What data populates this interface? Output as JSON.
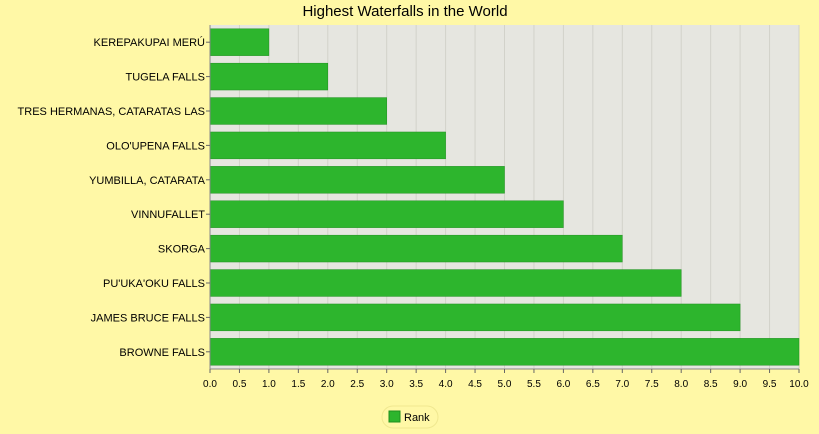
{
  "chart_data": {
    "type": "bar",
    "orientation": "horizontal",
    "title": "Highest Waterfalls in the World",
    "xlabel": "",
    "ylabel": "",
    "categories": [
      "KEREPAKUPAI MERÚ",
      "TUGELA FALLS",
      "TRES HERMANAS, CATARATAS LAS",
      "OLO'UPENA FALLS",
      "YUMBILLA, CATARATA",
      "VINNUFALLET",
      "SKORGA",
      "PU'UKA'OKU FALLS",
      "JAMES BRUCE FALLS",
      "BROWNE FALLS"
    ],
    "series": [
      {
        "name": "Rank",
        "color": "#2DB52D",
        "values": [
          1,
          2,
          3,
          4,
          5,
          6,
          7,
          8,
          9,
          10
        ]
      }
    ],
    "xlim": [
      0,
      10
    ],
    "xticks": [
      "0.0",
      "0.5",
      "1.0",
      "1.5",
      "2.0",
      "2.5",
      "3.0",
      "3.5",
      "4.0",
      "4.5",
      "5.0",
      "5.5",
      "6.0",
      "6.5",
      "7.0",
      "7.5",
      "8.0",
      "8.5",
      "9.0",
      "9.5",
      "10.0"
    ],
    "grid": true,
    "legend_position": "bottom-center",
    "colors": {
      "background": "#FFF8A6",
      "plot_background": "#E6E6E0",
      "grid": "#D2D2CA",
      "bar_border": "#1F8F1F"
    }
  }
}
